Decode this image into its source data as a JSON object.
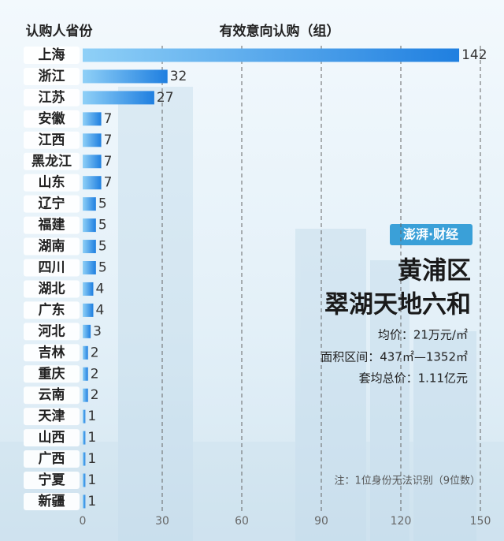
{
  "chart_data": {
    "type": "bar",
    "orientation": "horizontal",
    "y_label": "认购人省份",
    "x_label": "有效意向认购（组）",
    "categories": [
      "上海",
      "浙江",
      "江苏",
      "安徽",
      "江西",
      "黑龙江",
      "山东",
      "辽宁",
      "福建",
      "湖南",
      "四川",
      "湖北",
      "广东",
      "河北",
      "吉林",
      "重庆",
      "云南",
      "天津",
      "山西",
      "广西",
      "宁夏",
      "新疆"
    ],
    "values": [
      142,
      32,
      27,
      7,
      7,
      7,
      7,
      5,
      5,
      5,
      5,
      4,
      4,
      3,
      2,
      2,
      2,
      1,
      1,
      1,
      1,
      1
    ],
    "color": "#2f8fe6",
    "xlim": [
      0,
      150
    ],
    "xticks": [
      0,
      30,
      60,
      90,
      120,
      150
    ],
    "grid": true,
    "annotations": {
      "logo": "澎湃·财经",
      "district": "黄浦区",
      "project": "翠湖天地六和",
      "info": [
        "均价：21万元/㎡",
        "面积区间：437㎡—1352㎡",
        "套均总价：1.11亿元"
      ],
      "note": "注：1位身份无法识别（9位数）"
    }
  }
}
